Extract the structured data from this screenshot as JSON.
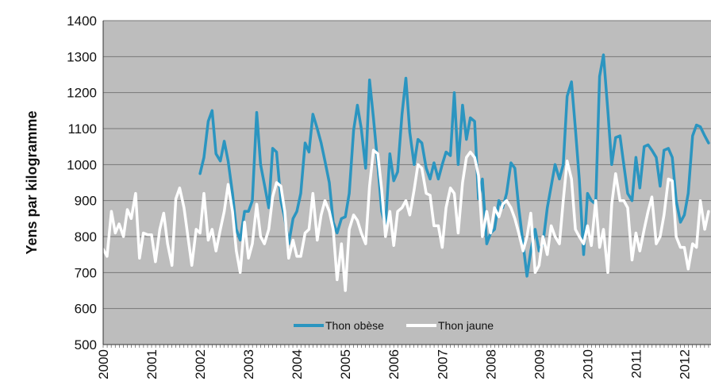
{
  "chart_data": {
    "type": "line",
    "title": "",
    "xlabel": "",
    "ylabel": "Yens par kilogramme",
    "ylim": [
      500,
      1400
    ],
    "yticks": [
      500,
      600,
      700,
      800,
      900,
      1000,
      1100,
      1200,
      1300,
      1400
    ],
    "xlim": [
      2000,
      2012.55
    ],
    "xticks": [
      "2000",
      "2001",
      "2002",
      "2003",
      "2004",
      "2005",
      "2006",
      "2007",
      "2008",
      "2009",
      "2010",
      "2011",
      "2012"
    ],
    "grid": "horizontal",
    "legend_position": "bottom-center",
    "plot_background": "#bdbdbd",
    "series": [
      {
        "name": "Thon obèse",
        "color": "#2b95c0",
        "points": [
          [
            2002.0,
            975
          ],
          [
            2002.08,
            1020
          ],
          [
            2002.17,
            1120
          ],
          [
            2002.25,
            1150
          ],
          [
            2002.33,
            1030
          ],
          [
            2002.42,
            1010
          ],
          [
            2002.5,
            1065
          ],
          [
            2002.58,
            1010
          ],
          [
            2002.67,
            920
          ],
          [
            2002.75,
            820
          ],
          [
            2002.83,
            790
          ],
          [
            2002.92,
            870
          ],
          [
            2003.0,
            870
          ],
          [
            2003.08,
            900
          ],
          [
            2003.17,
            1145
          ],
          [
            2003.25,
            1000
          ],
          [
            2003.33,
            945
          ],
          [
            2003.42,
            880
          ],
          [
            2003.5,
            1045
          ],
          [
            2003.58,
            1035
          ],
          [
            2003.67,
            900
          ],
          [
            2003.75,
            850
          ],
          [
            2003.83,
            780
          ],
          [
            2003.92,
            850
          ],
          [
            2004.0,
            870
          ],
          [
            2004.08,
            920
          ],
          [
            2004.17,
            1060
          ],
          [
            2004.25,
            1035
          ],
          [
            2004.33,
            1140
          ],
          [
            2004.42,
            1100
          ],
          [
            2004.5,
            1060
          ],
          [
            2004.58,
            1010
          ],
          [
            2004.67,
            950
          ],
          [
            2004.75,
            840
          ],
          [
            2004.83,
            810
          ],
          [
            2004.92,
            850
          ],
          [
            2005.0,
            855
          ],
          [
            2005.08,
            920
          ],
          [
            2005.17,
            1095
          ],
          [
            2005.25,
            1165
          ],
          [
            2005.33,
            1100
          ],
          [
            2005.42,
            990
          ],
          [
            2005.5,
            1235
          ],
          [
            2005.58,
            1130
          ],
          [
            2005.67,
            1000
          ],
          [
            2005.75,
            870
          ],
          [
            2005.83,
            830
          ],
          [
            2005.92,
            1030
          ],
          [
            2006.0,
            955
          ],
          [
            2006.08,
            980
          ],
          [
            2006.17,
            1140
          ],
          [
            2006.25,
            1240
          ],
          [
            2006.33,
            1090
          ],
          [
            2006.42,
            1000
          ],
          [
            2006.5,
            1070
          ],
          [
            2006.58,
            1060
          ],
          [
            2006.67,
            990
          ],
          [
            2006.75,
            960
          ],
          [
            2006.83,
            1005
          ],
          [
            2006.92,
            960
          ],
          [
            2007.0,
            1000
          ],
          [
            2007.08,
            1035
          ],
          [
            2007.17,
            1025
          ],
          [
            2007.25,
            1200
          ],
          [
            2007.33,
            1000
          ],
          [
            2007.42,
            1165
          ],
          [
            2007.5,
            1070
          ],
          [
            2007.58,
            1130
          ],
          [
            2007.67,
            1120
          ],
          [
            2007.75,
            905
          ],
          [
            2007.83,
            960
          ],
          [
            2007.92,
            780
          ],
          [
            2008.0,
            810
          ],
          [
            2008.08,
            820
          ],
          [
            2008.17,
            900
          ],
          [
            2008.25,
            880
          ],
          [
            2008.33,
            920
          ],
          [
            2008.42,
            1005
          ],
          [
            2008.5,
            990
          ],
          [
            2008.58,
            880
          ],
          [
            2008.67,
            780
          ],
          [
            2008.75,
            690
          ],
          [
            2008.83,
            760
          ],
          [
            2008.92,
            820
          ],
          [
            2009.0,
            760
          ],
          [
            2009.08,
            780
          ],
          [
            2009.17,
            880
          ],
          [
            2009.25,
            940
          ],
          [
            2009.33,
            1000
          ],
          [
            2009.42,
            960
          ],
          [
            2009.5,
            1000
          ],
          [
            2009.58,
            1190
          ],
          [
            2009.67,
            1230
          ],
          [
            2009.75,
            1100
          ],
          [
            2009.83,
            960
          ],
          [
            2009.92,
            750
          ],
          [
            2010.0,
            920
          ],
          [
            2010.08,
            900
          ],
          [
            2010.17,
            890
          ],
          [
            2010.25,
            1245
          ],
          [
            2010.33,
            1305
          ],
          [
            2010.42,
            1150
          ],
          [
            2010.5,
            1000
          ],
          [
            2010.58,
            1075
          ],
          [
            2010.67,
            1080
          ],
          [
            2010.75,
            1000
          ],
          [
            2010.83,
            920
          ],
          [
            2010.92,
            900
          ],
          [
            2011.0,
            1020
          ],
          [
            2011.08,
            935
          ],
          [
            2011.17,
            1050
          ],
          [
            2011.25,
            1055
          ],
          [
            2011.33,
            1040
          ],
          [
            2011.42,
            1020
          ],
          [
            2011.5,
            940
          ],
          [
            2011.58,
            1040
          ],
          [
            2011.67,
            1045
          ],
          [
            2011.75,
            1020
          ],
          [
            2011.83,
            900
          ],
          [
            2011.92,
            840
          ],
          [
            2012.0,
            860
          ],
          [
            2012.08,
            920
          ],
          [
            2012.17,
            1080
          ],
          [
            2012.25,
            1110
          ],
          [
            2012.33,
            1105
          ],
          [
            2012.42,
            1080
          ],
          [
            2012.5,
            1060
          ]
        ]
      },
      {
        "name": "Thon jaune",
        "color": "#ffffff",
        "points": [
          [
            2000.0,
            765
          ],
          [
            2000.08,
            745
          ],
          [
            2000.17,
            870
          ],
          [
            2000.25,
            810
          ],
          [
            2000.33,
            835
          ],
          [
            2000.42,
            800
          ],
          [
            2000.5,
            875
          ],
          [
            2000.58,
            850
          ],
          [
            2000.67,
            920
          ],
          [
            2000.75,
            740
          ],
          [
            2000.83,
            810
          ],
          [
            2000.92,
            805
          ],
          [
            2001.0,
            805
          ],
          [
            2001.08,
            730
          ],
          [
            2001.17,
            820
          ],
          [
            2001.25,
            865
          ],
          [
            2001.33,
            780
          ],
          [
            2001.42,
            720
          ],
          [
            2001.5,
            905
          ],
          [
            2001.58,
            935
          ],
          [
            2001.67,
            880
          ],
          [
            2001.75,
            800
          ],
          [
            2001.83,
            720
          ],
          [
            2001.92,
            820
          ],
          [
            2002.0,
            810
          ],
          [
            2002.08,
            920
          ],
          [
            2002.17,
            790
          ],
          [
            2002.25,
            820
          ],
          [
            2002.33,
            760
          ],
          [
            2002.42,
            820
          ],
          [
            2002.5,
            870
          ],
          [
            2002.58,
            945
          ],
          [
            2002.67,
            870
          ],
          [
            2002.75,
            760
          ],
          [
            2002.83,
            700
          ],
          [
            2002.92,
            840
          ],
          [
            2003.0,
            740
          ],
          [
            2003.08,
            780
          ],
          [
            2003.17,
            890
          ],
          [
            2003.25,
            800
          ],
          [
            2003.33,
            780
          ],
          [
            2003.42,
            820
          ],
          [
            2003.5,
            910
          ],
          [
            2003.58,
            950
          ],
          [
            2003.67,
            940
          ],
          [
            2003.75,
            870
          ],
          [
            2003.83,
            740
          ],
          [
            2003.92,
            790
          ],
          [
            2004.0,
            745
          ],
          [
            2004.08,
            745
          ],
          [
            2004.17,
            810
          ],
          [
            2004.25,
            820
          ],
          [
            2004.33,
            920
          ],
          [
            2004.42,
            790
          ],
          [
            2004.5,
            860
          ],
          [
            2004.58,
            900
          ],
          [
            2004.67,
            870
          ],
          [
            2004.75,
            820
          ],
          [
            2004.83,
            680
          ],
          [
            2004.92,
            780
          ],
          [
            2005.0,
            650
          ],
          [
            2005.08,
            820
          ],
          [
            2005.17,
            860
          ],
          [
            2005.25,
            845
          ],
          [
            2005.33,
            810
          ],
          [
            2005.42,
            780
          ],
          [
            2005.5,
            940
          ],
          [
            2005.58,
            1040
          ],
          [
            2005.67,
            1030
          ],
          [
            2005.75,
            930
          ],
          [
            2005.83,
            800
          ],
          [
            2005.92,
            870
          ],
          [
            2006.0,
            775
          ],
          [
            2006.08,
            870
          ],
          [
            2006.17,
            880
          ],
          [
            2006.25,
            900
          ],
          [
            2006.33,
            860
          ],
          [
            2006.42,
            930
          ],
          [
            2006.5,
            1000
          ],
          [
            2006.58,
            990
          ],
          [
            2006.67,
            920
          ],
          [
            2006.75,
            915
          ],
          [
            2006.83,
            830
          ],
          [
            2006.92,
            830
          ],
          [
            2007.0,
            770
          ],
          [
            2007.08,
            880
          ],
          [
            2007.17,
            935
          ],
          [
            2007.25,
            920
          ],
          [
            2007.33,
            810
          ],
          [
            2007.42,
            950
          ],
          [
            2007.5,
            1020
          ],
          [
            2007.58,
            1035
          ],
          [
            2007.67,
            1020
          ],
          [
            2007.75,
            970
          ],
          [
            2007.83,
            800
          ],
          [
            2007.92,
            870
          ],
          [
            2008.0,
            810
          ],
          [
            2008.08,
            880
          ],
          [
            2008.17,
            855
          ],
          [
            2008.25,
            890
          ],
          [
            2008.33,
            900
          ],
          [
            2008.42,
            880
          ],
          [
            2008.5,
            850
          ],
          [
            2008.58,
            810
          ],
          [
            2008.67,
            760
          ],
          [
            2008.75,
            800
          ],
          [
            2008.83,
            865
          ],
          [
            2008.92,
            700
          ],
          [
            2009.0,
            720
          ],
          [
            2009.08,
            800
          ],
          [
            2009.17,
            750
          ],
          [
            2009.25,
            830
          ],
          [
            2009.33,
            800
          ],
          [
            2009.42,
            780
          ],
          [
            2009.5,
            900
          ],
          [
            2009.58,
            1010
          ],
          [
            2009.67,
            960
          ],
          [
            2009.75,
            820
          ],
          [
            2009.83,
            800
          ],
          [
            2009.92,
            780
          ],
          [
            2010.0,
            830
          ],
          [
            2010.08,
            775
          ],
          [
            2010.17,
            900
          ],
          [
            2010.25,
            770
          ],
          [
            2010.33,
            820
          ],
          [
            2010.42,
            700
          ],
          [
            2010.5,
            890
          ],
          [
            2010.58,
            975
          ],
          [
            2010.67,
            900
          ],
          [
            2010.75,
            900
          ],
          [
            2010.83,
            880
          ],
          [
            2010.92,
            735
          ],
          [
            2011.0,
            810
          ],
          [
            2011.08,
            760
          ],
          [
            2011.17,
            820
          ],
          [
            2011.25,
            870
          ],
          [
            2011.33,
            910
          ],
          [
            2011.42,
            780
          ],
          [
            2011.5,
            800
          ],
          [
            2011.58,
            860
          ],
          [
            2011.67,
            960
          ],
          [
            2011.75,
            955
          ],
          [
            2011.83,
            800
          ],
          [
            2011.92,
            770
          ],
          [
            2012.0,
            770
          ],
          [
            2012.08,
            710
          ],
          [
            2012.17,
            780
          ],
          [
            2012.25,
            770
          ],
          [
            2012.33,
            900
          ],
          [
            2012.42,
            820
          ],
          [
            2012.5,
            870
          ]
        ]
      }
    ]
  }
}
